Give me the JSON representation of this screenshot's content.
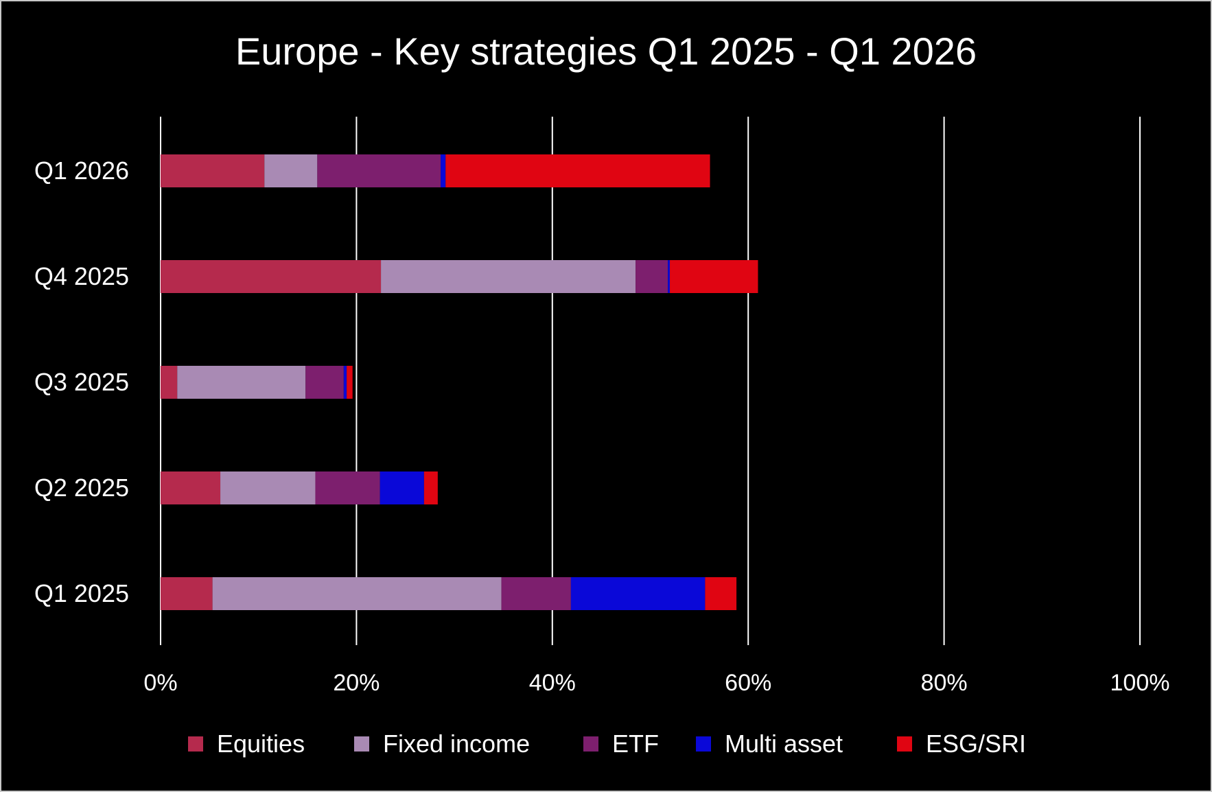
{
  "chart_data": {
    "type": "bar",
    "orientation": "horizontal",
    "stacked": true,
    "title": "Europe - Key strategies Q1 2025 - Q1 2026",
    "categories": [
      "Q1 2026",
      "Q4 2025",
      "Q3 2025",
      "Q2 2025",
      "Q1 2025"
    ],
    "series": [
      {
        "name": "Equities",
        "color": "#b52a4d",
        "values": [
          10.6,
          22.5,
          1.7,
          6.1,
          5.3
        ]
      },
      {
        "name": "Fixed income",
        "color": "#a98ab4",
        "values": [
          5.4,
          26.0,
          13.1,
          9.7,
          29.5
        ]
      },
      {
        "name": "ETF",
        "color": "#7d1f6e",
        "values": [
          12.6,
          3.3,
          3.9,
          6.6,
          7.1
        ]
      },
      {
        "name": "Multi asset",
        "color": "#0a08d8",
        "values": [
          0.5,
          0.2,
          0.3,
          4.5,
          13.7
        ]
      },
      {
        "name": "ESG/SRI",
        "color": "#e00512",
        "values": [
          27.0,
          9.0,
          0.6,
          1.4,
          3.2
        ]
      }
    ],
    "xlim": [
      0,
      100
    ],
    "xticks": [
      "0%",
      "20%",
      "40%",
      "60%",
      "80%",
      "100%"
    ],
    "grid": "vertical",
    "legend": "bottom",
    "background": "#000000"
  }
}
